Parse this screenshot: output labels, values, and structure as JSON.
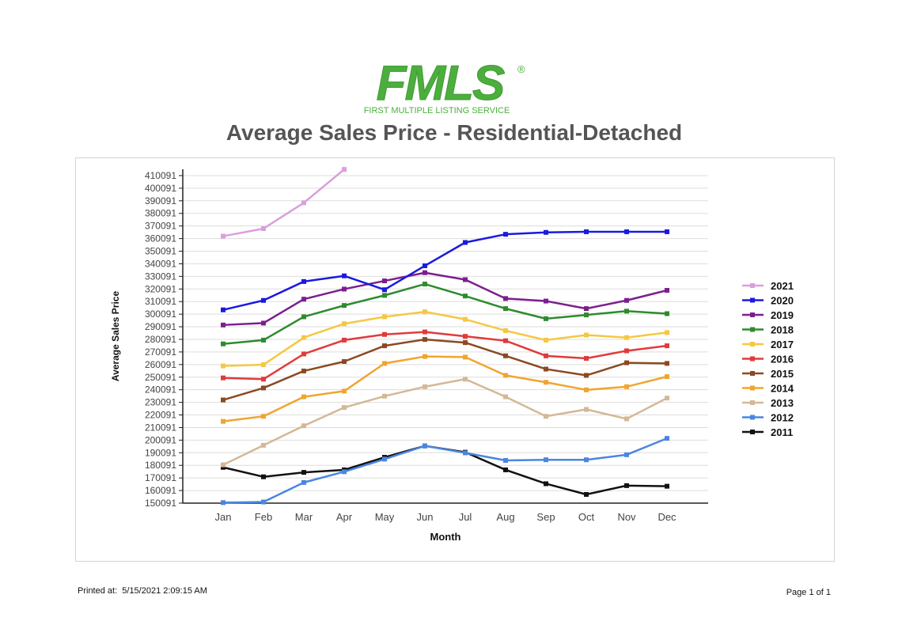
{
  "header": {
    "logo_text": "FMLS",
    "logo_registered": "®",
    "logo_subtitle": "FIRST MULTIPLE LISTING SERVICE",
    "title": "Average Sales Price - Residential-Detached"
  },
  "footer": {
    "printed_label": "Printed at:",
    "printed_value": "5/15/2021 2:09:15 AM",
    "page": "Page 1 of 1"
  },
  "colors": {
    "brand_green": "#4caf3d",
    "title_gray": "#555555"
  },
  "chart_data": {
    "type": "line",
    "title": "",
    "xlabel": "Month",
    "ylabel": "Average Sales Price",
    "categories": [
      "Jan",
      "Feb",
      "Mar",
      "Apr",
      "May",
      "Jun",
      "Jul",
      "Aug",
      "Sep",
      "Oct",
      "Nov",
      "Dec"
    ],
    "ylim": [
      150091,
      415091
    ],
    "yticks": [
      150091,
      160091,
      170091,
      180091,
      190091,
      200091,
      210091,
      220091,
      230091,
      240091,
      250091,
      260091,
      270091,
      280091,
      290091,
      300091,
      310091,
      320091,
      330091,
      340091,
      350091,
      360091,
      370091,
      380091,
      390091,
      400091,
      410091
    ],
    "grid": true,
    "legend_position": "right",
    "series": [
      {
        "name": "2021",
        "color": "#d9a0dd",
        "values": [
          362000,
          368000,
          388500,
          415000,
          null,
          null,
          null,
          null,
          null,
          null,
          null,
          null
        ]
      },
      {
        "name": "2020",
        "color": "#1a1ae0",
        "values": [
          303500,
          311000,
          326000,
          330500,
          319500,
          338500,
          357000,
          363500,
          365000,
          365500,
          365500,
          365500
        ]
      },
      {
        "name": "2019",
        "color": "#7b1f8f",
        "values": [
          291500,
          293000,
          312000,
          320000,
          326500,
          333000,
          327500,
          312500,
          310500,
          304500,
          311000,
          319000
        ]
      },
      {
        "name": "2018",
        "color": "#2e8b2e",
        "values": [
          276500,
          279500,
          298000,
          307000,
          315000,
          324000,
          314500,
          304500,
          296500,
          299500,
          302500,
          300500
        ]
      },
      {
        "name": "2017",
        "color": "#f5c842",
        "values": [
          259000,
          260000,
          281500,
          292500,
          298000,
          302000,
          296000,
          287000,
          279500,
          283500,
          281500,
          285500
        ]
      },
      {
        "name": "2016",
        "color": "#e03b3b",
        "values": [
          249500,
          248500,
          268500,
          279500,
          284000,
          286000,
          282500,
          279000,
          267000,
          265000,
          271000,
          275000
        ]
      },
      {
        "name": "2015",
        "color": "#8b4a22",
        "values": [
          232000,
          241500,
          255000,
          262500,
          275000,
          280000,
          277500,
          267000,
          256500,
          251500,
          261500,
          261000
        ]
      },
      {
        "name": "2014",
        "color": "#f0a530",
        "values": [
          215000,
          219000,
          234500,
          239000,
          261000,
          266500,
          266000,
          251500,
          246000,
          240000,
          242500,
          250500
        ]
      },
      {
        "name": "2013",
        "color": "#d4b896",
        "values": [
          180500,
          196000,
          211500,
          226000,
          235000,
          242500,
          248500,
          234500,
          219000,
          224500,
          217000,
          233500
        ]
      },
      {
        "name": "2012",
        "color": "#4a86e0",
        "values": [
          150500,
          151000,
          166500,
          175000,
          185000,
          195500,
          190000,
          184000,
          184500,
          184500,
          188500,
          201500
        ]
      },
      {
        "name": "2011",
        "color": "#111111",
        "values": [
          178500,
          171000,
          174500,
          176500,
          186500,
          195500,
          190500,
          176500,
          165500,
          157000,
          164000,
          163500
        ]
      }
    ]
  }
}
